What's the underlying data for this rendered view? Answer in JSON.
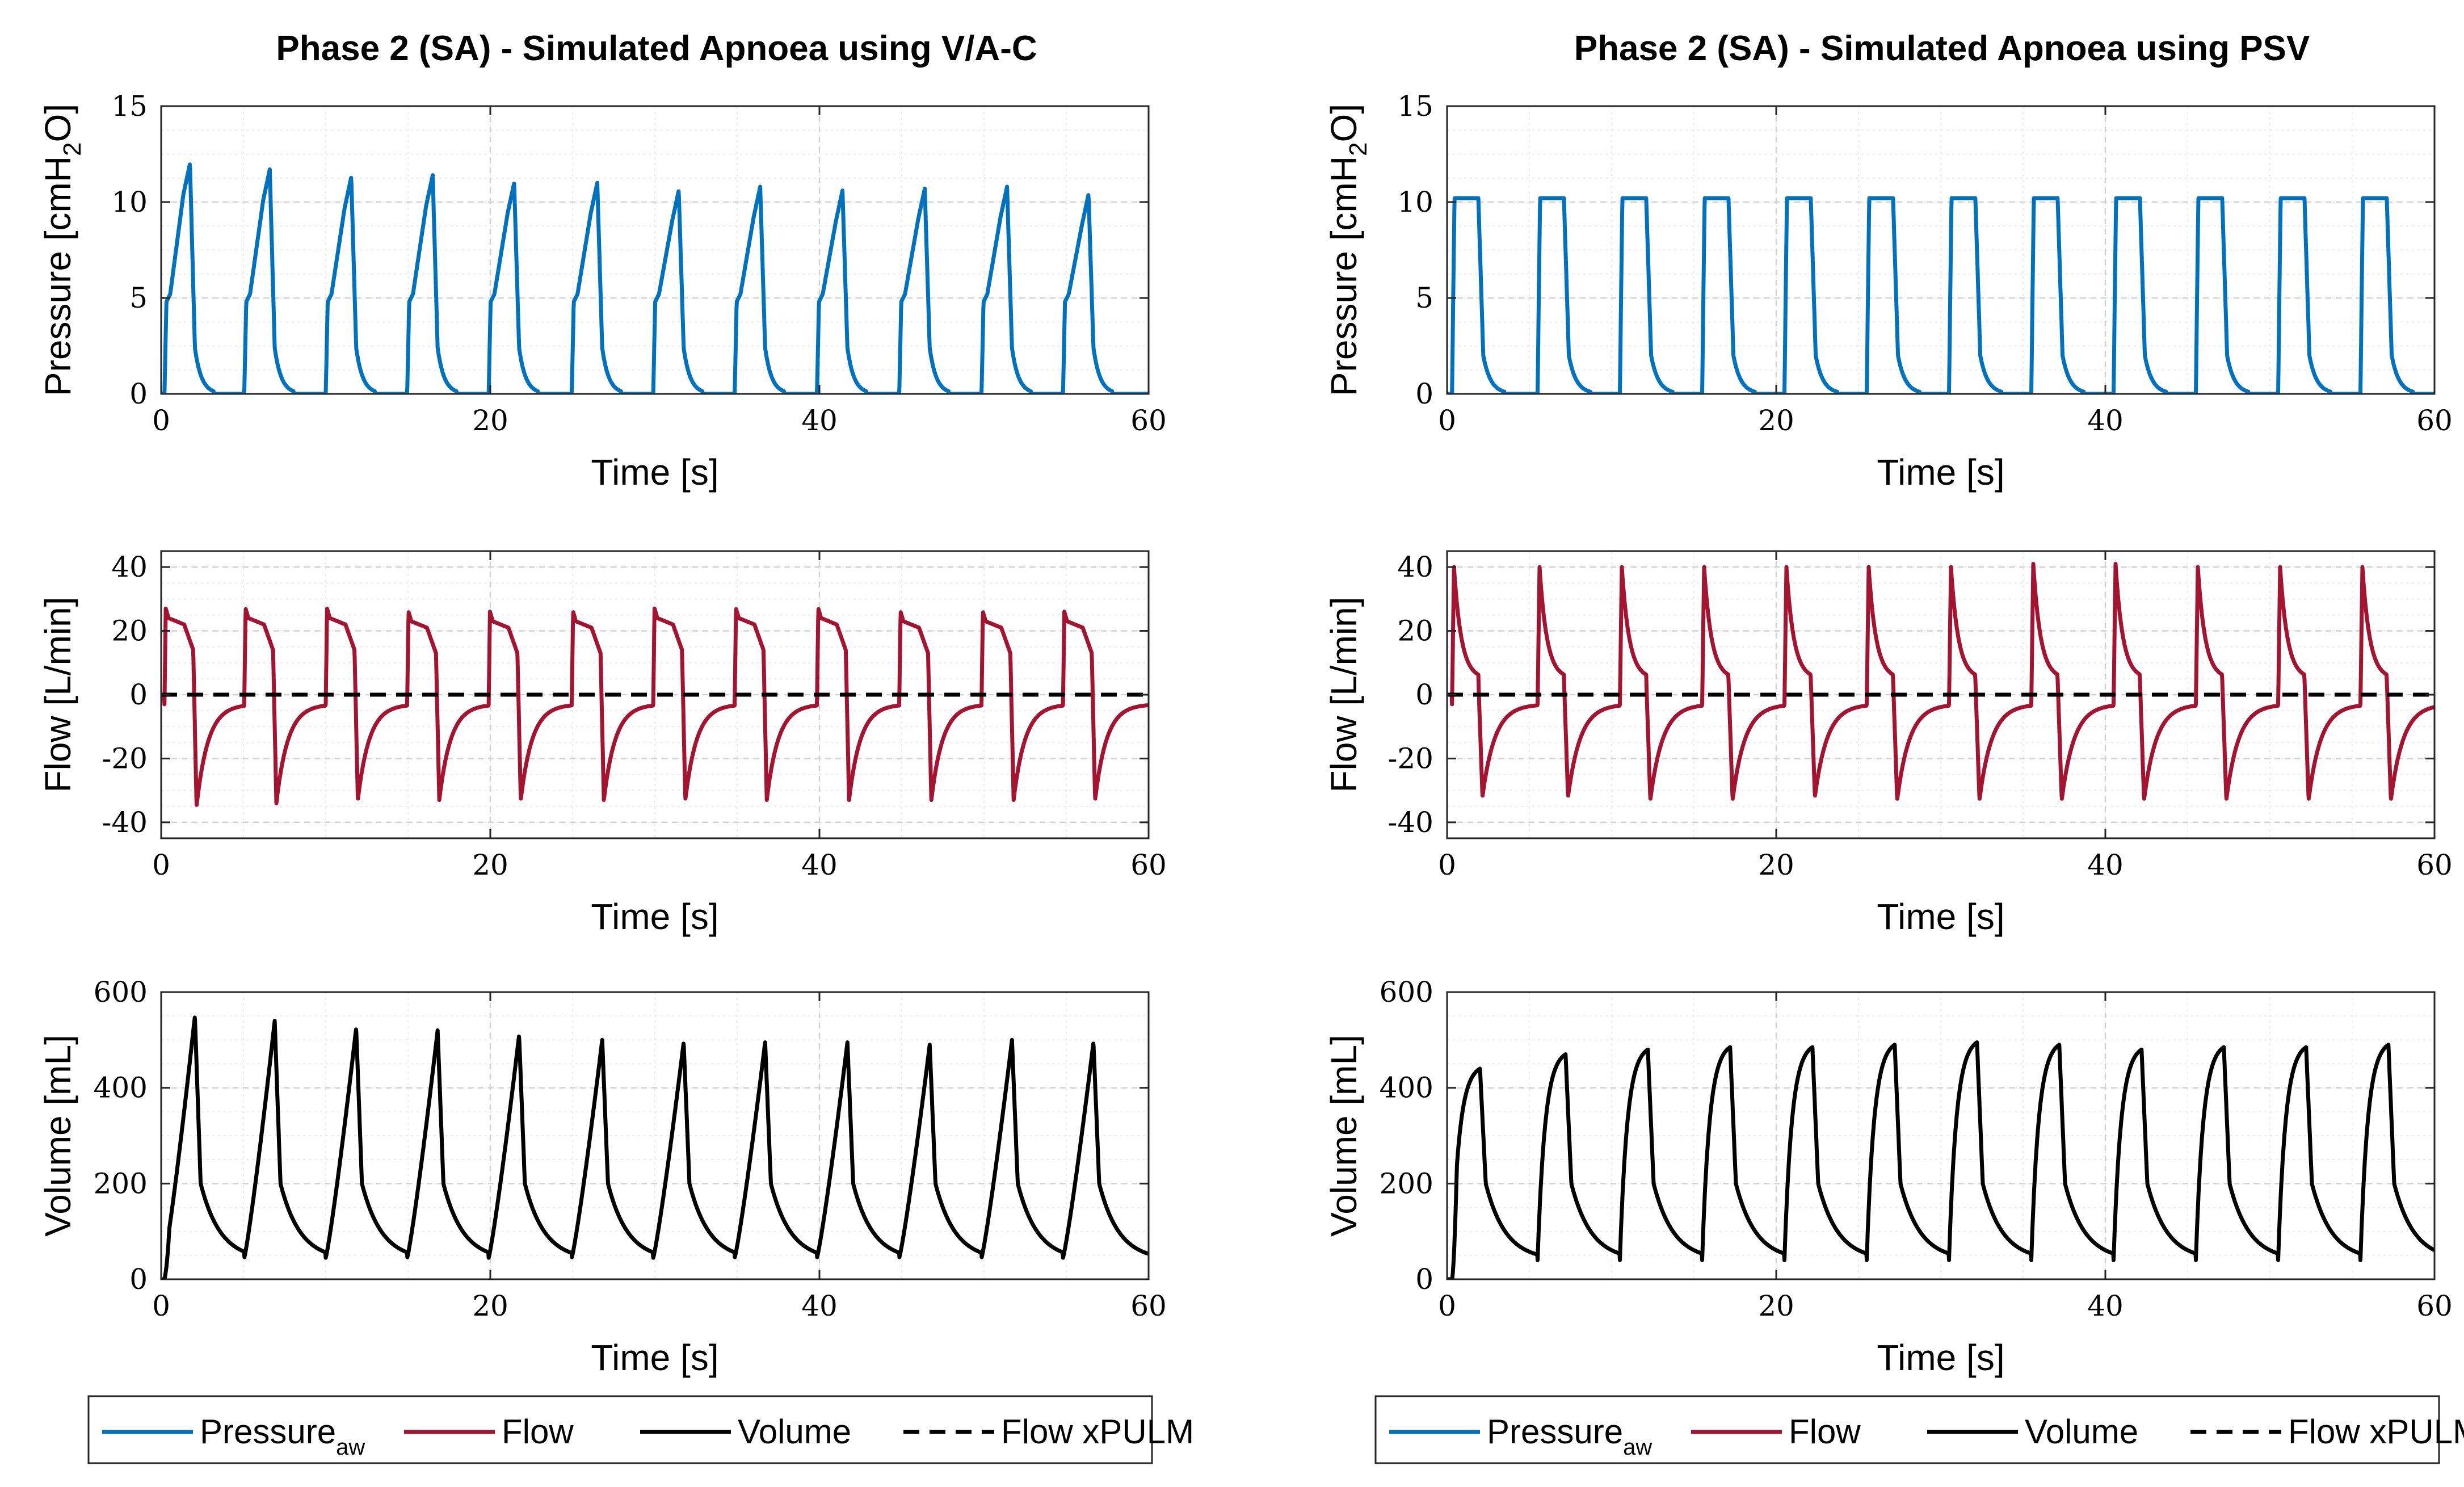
{
  "columns": [
    {
      "title": "Phase 2 (SA) - Simulated Apnoea using V/A-C",
      "legend": [
        {
          "label": "Pressure",
          "sub": "aw",
          "color": "#0072bd",
          "dash": false
        },
        {
          "label": "Flow",
          "sub": "",
          "color": "#a2142f",
          "dash": false
        },
        {
          "label": "Volume",
          "sub": "",
          "color": "#000000",
          "dash": false
        },
        {
          "label": "Flow xPULM",
          "sub": "",
          "color": "#000000",
          "dash": true
        }
      ]
    },
    {
      "title": "Phase 2 (SA) - Simulated Apnoea using PSV",
      "legend": [
        {
          "label": "Pressure",
          "sub": "aw",
          "color": "#0072bd",
          "dash": false
        },
        {
          "label": "Flow",
          "sub": "",
          "color": "#a2142f",
          "dash": false
        },
        {
          "label": "Volume",
          "sub": "",
          "color": "#000000",
          "dash": false
        },
        {
          "label": "Flow xPULM",
          "sub": "",
          "color": "#000000",
          "dash": true
        }
      ]
    }
  ],
  "colors": {
    "pressure": "#0072bd",
    "flow": "#a2142f",
    "volume": "#000000",
    "grid": "#dcdcdc"
  },
  "chart_data": [
    {
      "type": "line",
      "panel": "pressure-vac",
      "xlabel": "Time [s]",
      "ylabel": "Pressure [cmH2O]",
      "ylabel_main": "Pressure [cmH",
      "ylabel_sub": "2",
      "ylabel_end": "O]",
      "xlim": [
        0,
        60
      ],
      "ylim": [
        0,
        15
      ],
      "xticks": [
        0,
        20,
        40,
        60
      ],
      "yticks": [
        0,
        5,
        10,
        15
      ],
      "grid": true,
      "minor_grid": true,
      "series": [
        {
          "name": "Pressure",
          "color": "#0072bd",
          "shape": "vac_pressure",
          "period": 4.95,
          "starts": [
            0.2,
            5.05,
            10.0,
            14.95,
            19.9,
            24.95,
            29.9,
            34.85,
            39.85,
            44.85,
            49.85,
            54.8
          ],
          "peaks": [
            12.0,
            11.7,
            11.3,
            11.4,
            11.0,
            11.0,
            10.6,
            10.8,
            10.6,
            10.7,
            10.8,
            10.4
          ]
        }
      ]
    },
    {
      "type": "line",
      "panel": "flow-vac",
      "xlabel": "Time [s]",
      "ylabel": "Flow [L/min]",
      "xlim": [
        0,
        60
      ],
      "ylim": [
        -45,
        45
      ],
      "xticks": [
        0,
        20,
        40,
        60
      ],
      "yticks": [
        -40,
        -20,
        0,
        20,
        40
      ],
      "grid": true,
      "minor_grid": true,
      "series": [
        {
          "name": "Flow",
          "color": "#a2142f",
          "shape": "vac_flow",
          "starts": [
            0.2,
            5.05,
            10.0,
            14.95,
            19.9,
            24.95,
            29.9,
            34.85,
            39.85,
            44.85,
            49.85,
            54.8
          ],
          "peaks": [
            27,
            27,
            27,
            26,
            26,
            26,
            27,
            27,
            27,
            26,
            26,
            26
          ],
          "troughs": [
            -35,
            -34,
            -33,
            -33,
            -33,
            -33,
            -33,
            -33,
            -33,
            -33,
            -33,
            -33
          ]
        },
        {
          "name": "Flow xPULM",
          "color": "#000000",
          "dash": true,
          "constant": 0
        }
      ]
    },
    {
      "type": "line",
      "panel": "volume-vac",
      "xlabel": "Time [s]",
      "ylabel": "Volume [mL]",
      "xlim": [
        0,
        60
      ],
      "ylim": [
        0,
        600
      ],
      "xticks": [
        0,
        20,
        40,
        60
      ],
      "yticks": [
        0,
        200,
        400,
        600
      ],
      "grid": true,
      "minor_grid": true,
      "series": [
        {
          "name": "Volume",
          "color": "#000000",
          "shape": "vac_volume",
          "starts": [
            0.2,
            5.05,
            10.0,
            14.95,
            19.9,
            24.95,
            29.9,
            34.85,
            39.85,
            44.85,
            49.85,
            54.8
          ],
          "peaks": [
            550,
            540,
            525,
            520,
            510,
            500,
            495,
            495,
            495,
            490,
            500,
            495
          ]
        }
      ]
    },
    {
      "type": "line",
      "panel": "pressure-psv",
      "xlabel": "Time [s]",
      "ylabel": "Pressure [cmH2O]",
      "ylabel_main": "Pressure [cmH",
      "ylabel_sub": "2",
      "ylabel_end": "O]",
      "xlim": [
        0,
        60
      ],
      "ylim": [
        0,
        15
      ],
      "xticks": [
        0,
        20,
        40,
        60
      ],
      "yticks": [
        0,
        5,
        10,
        15
      ],
      "grid": true,
      "minor_grid": true,
      "series": [
        {
          "name": "Pressure",
          "color": "#0072bd",
          "shape": "psv_pressure",
          "starts": [
            0.3,
            5.5,
            10.5,
            15.5,
            20.5,
            25.5,
            30.5,
            35.5,
            40.5,
            45.5,
            50.5,
            55.5
          ],
          "peaks": [
            10.2,
            10.2,
            10.2,
            10.2,
            10.2,
            10.2,
            10.2,
            10.2,
            10.2,
            10.2,
            10.2,
            10.2
          ]
        }
      ]
    },
    {
      "type": "line",
      "panel": "flow-psv",
      "xlabel": "Time [s]",
      "ylabel": "Flow [L/min]",
      "xlim": [
        0,
        60
      ],
      "ylim": [
        -45,
        45
      ],
      "xticks": [
        0,
        20,
        40,
        60
      ],
      "yticks": [
        -40,
        -20,
        0,
        20,
        40
      ],
      "grid": true,
      "minor_grid": true,
      "series": [
        {
          "name": "Flow",
          "color": "#a2142f",
          "shape": "psv_flow",
          "starts": [
            0.3,
            5.5,
            10.5,
            15.5,
            20.5,
            25.5,
            30.5,
            35.5,
            40.5,
            45.5,
            50.5,
            55.5
          ],
          "peaks": [
            40,
            40,
            40,
            40,
            40,
            40,
            40,
            41,
            41,
            40,
            40,
            40
          ],
          "troughs": [
            -32,
            -32,
            -33,
            -33,
            -32,
            -33,
            -33,
            -33,
            -33,
            -33,
            -33,
            -33
          ]
        },
        {
          "name": "Flow xPULM",
          "color": "#000000",
          "dash": true,
          "constant": 0
        }
      ]
    },
    {
      "type": "line",
      "panel": "volume-psv",
      "xlabel": "Time [s]",
      "ylabel": "Volume [mL]",
      "xlim": [
        0,
        60
      ],
      "ylim": [
        0,
        600
      ],
      "xticks": [
        0,
        20,
        40,
        60
      ],
      "yticks": [
        0,
        200,
        400,
        600
      ],
      "grid": true,
      "minor_grid": true,
      "series": [
        {
          "name": "Volume",
          "color": "#000000",
          "shape": "psv_volume",
          "starts": [
            0.3,
            5.5,
            10.5,
            15.5,
            20.5,
            25.5,
            30.5,
            35.5,
            40.5,
            45.5,
            50.5,
            55.5
          ],
          "peaks": [
            440,
            470,
            480,
            485,
            485,
            490,
            495,
            490,
            480,
            485,
            485,
            490
          ]
        }
      ]
    }
  ]
}
